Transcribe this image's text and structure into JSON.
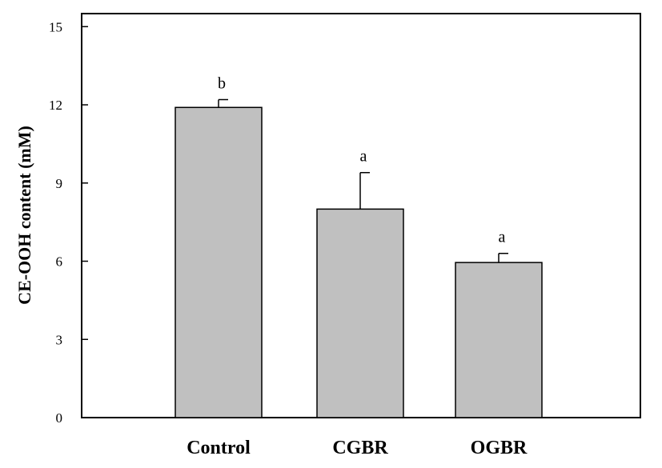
{
  "chart_data": {
    "type": "bar",
    "title": "",
    "xlabel": "",
    "ylabel": "CE-OOH content (mM)",
    "ylim": [
      0,
      15.5
    ],
    "yticks": [
      0,
      3,
      6,
      9,
      12,
      15
    ],
    "categories": [
      "Control",
      "CGBR",
      "OGBR"
    ],
    "values": [
      11.9,
      8.0,
      5.95
    ],
    "error": [
      0.3,
      1.4,
      0.35
    ],
    "significance": [
      "b",
      "a",
      "a"
    ],
    "bar_color": "#c0c0c0",
    "grid": false,
    "legend": "none"
  }
}
